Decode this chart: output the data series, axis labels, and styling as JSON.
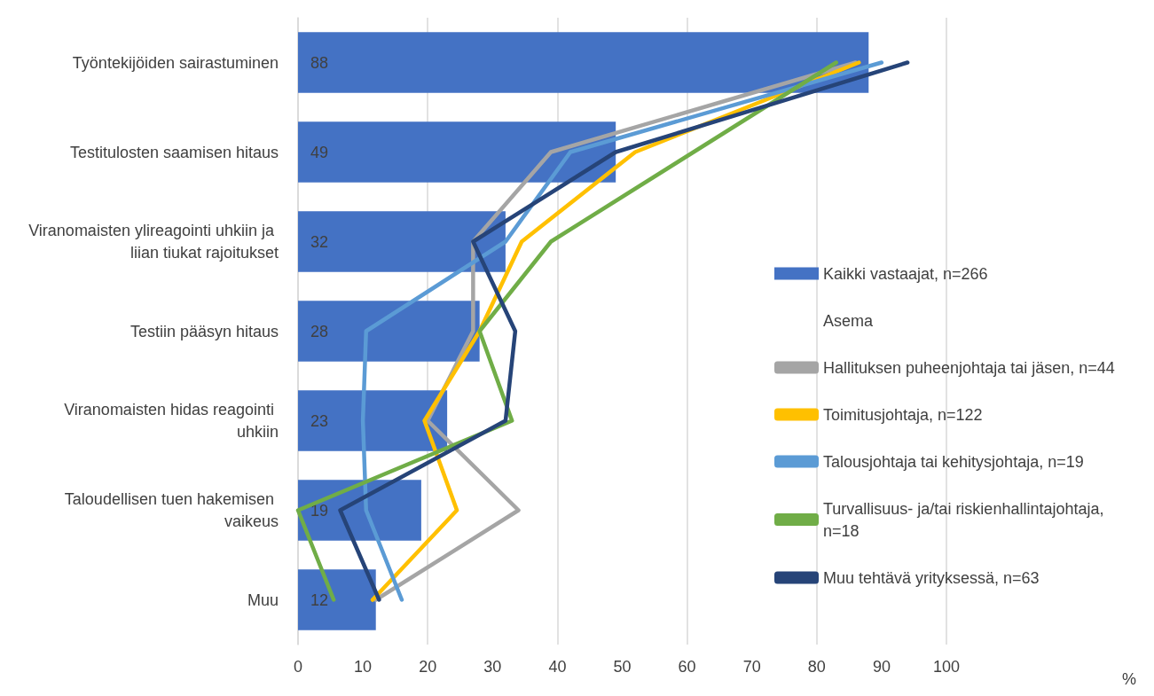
{
  "chart_data": {
    "type": "bar",
    "orientation": "horizontal",
    "annotations": [
      "%"
    ],
    "legend_title": "Asema",
    "legend": "right",
    "grid": "x",
    "marker": "none",
    "categories": [
      "Työntekijöiden sairastuminen",
      "Testitulosten saamisen hitaus",
      "Viranomaisten ylireagointi uhkiin ja liian tiukat rajoitukset",
      "Testiin pääsyn hitaus",
      "Viranomaisten hidas reagointi uhkiin",
      "Taloudellisen tuen hakemisen vaikeus",
      "Muu"
    ],
    "xlim": [
      0,
      100
    ],
    "xticks": [
      0,
      10,
      20,
      30,
      40,
      50,
      60,
      70,
      80,
      90,
      100
    ],
    "series": [
      {
        "name": "Kaikki vastaajat, n=266",
        "color": "#4472c4",
        "values": [
          88,
          49,
          32,
          28,
          23,
          19,
          12
        ],
        "value_labels": [
          "88",
          "49",
          "32",
          "28",
          "23",
          "19",
          "12"
        ]
      },
      {
        "name": "Hallituksen puheenjohtaja tai jäsen, n=44",
        "type": "line",
        "color": "#a5a5a5",
        "values": [
          86,
          39,
          27,
          27,
          20,
          34,
          12
        ]
      },
      {
        "name": "Toimitusjohtaja, n=122",
        "type": "line",
        "color": "#ffc000",
        "values": [
          86.5,
          52,
          34.5,
          28,
          19.5,
          24.5,
          11.5
        ]
      },
      {
        "name": "Talousjohtaja tai kehitysjohtaja, n=19",
        "type": "line",
        "color": "#5b9bd5",
        "values": [
          90,
          42,
          32,
          10.5,
          10,
          10.5,
          16
        ]
      },
      {
        "name": "Turvallisuus- ja/tai riskienhallintajohtaja, n=18",
        "type": "line",
        "color": "#70ad47",
        "values": [
          83,
          61,
          39,
          28,
          33,
          0,
          5.5
        ]
      },
      {
        "name": "Muu tehtävä yrityksessä, n=63",
        "type": "line",
        "color": "#264478",
        "values": [
          94,
          49,
          27,
          33.5,
          32,
          6.5,
          12.5
        ]
      }
    ]
  }
}
